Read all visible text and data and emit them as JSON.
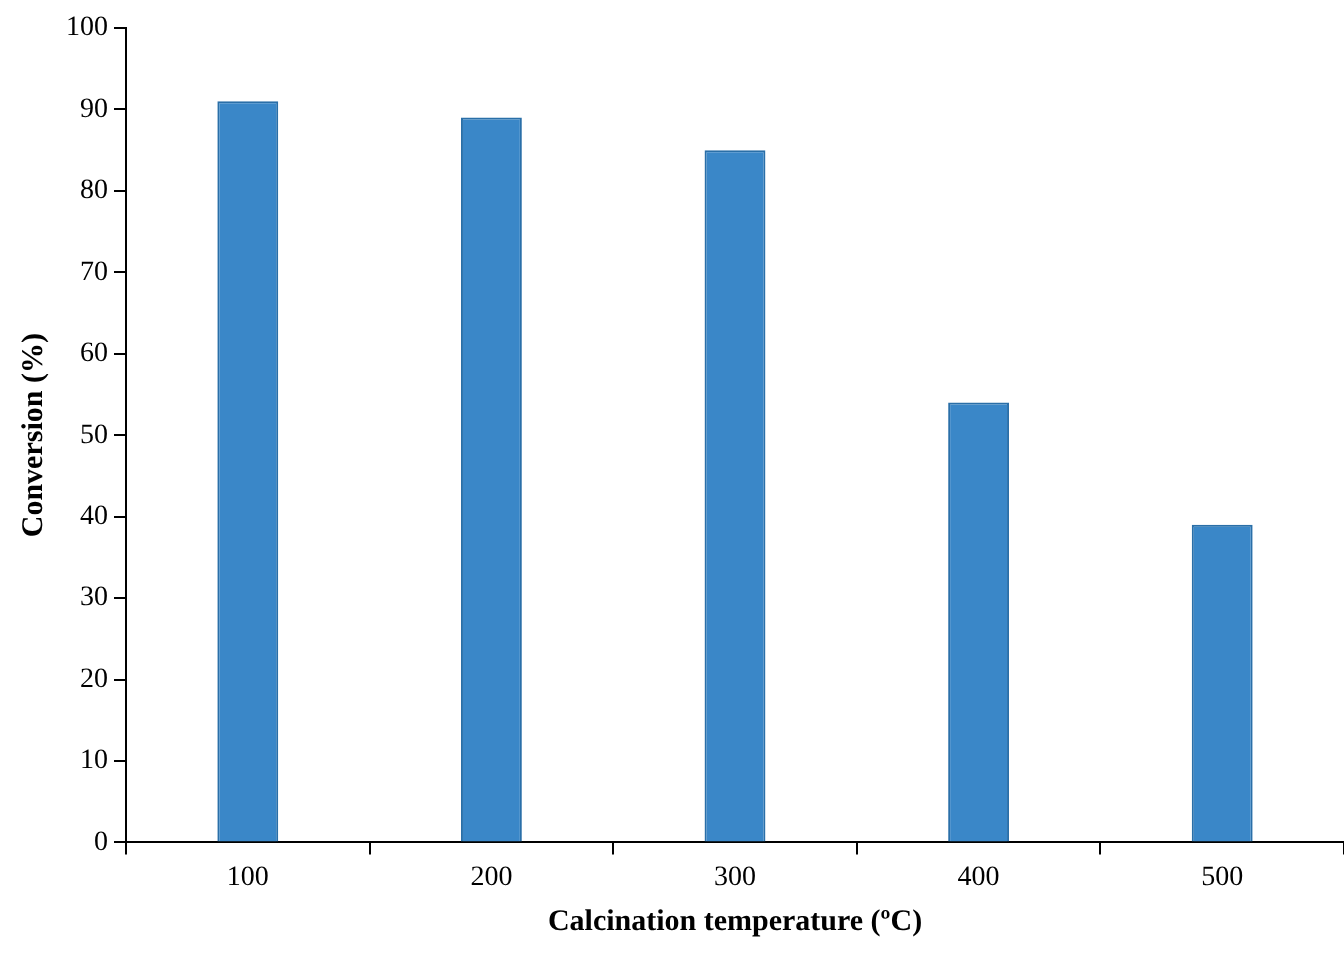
{
  "chart_data": {
    "type": "bar",
    "xlabel": "Calcination temperature (ºC)",
    "ylabel": "Conversion (%)",
    "categories": [
      "100",
      "200",
      "300",
      "400",
      "500"
    ],
    "values": [
      91,
      89,
      85,
      54,
      39
    ],
    "color": "#3a87c8",
    "ylim": [
      0,
      100
    ],
    "yticks": [
      0,
      10,
      20,
      30,
      40,
      50,
      60,
      70,
      80,
      90,
      100
    ],
    "grid": false,
    "legend": false
  }
}
